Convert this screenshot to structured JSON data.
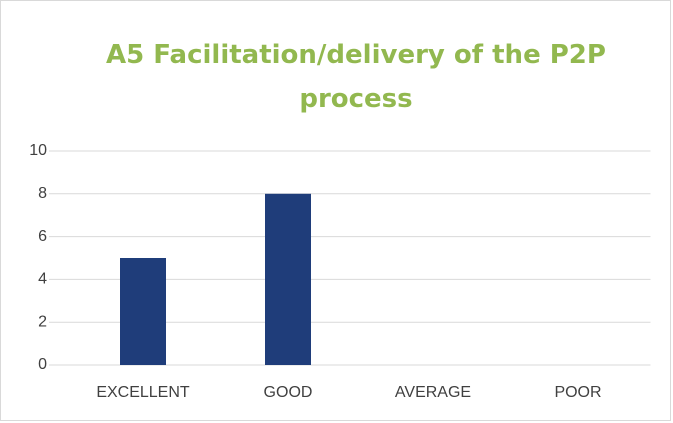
{
  "chart_data": {
    "type": "bar",
    "title": "A5 Facilitation/delivery of the P2P process",
    "categories": [
      "EXCELLENT",
      "GOOD",
      "AVERAGE",
      "POOR"
    ],
    "values": [
      5,
      8,
      0,
      0
    ],
    "color": "#1f3d7a",
    "ylim": [
      0,
      10
    ],
    "yticks": [
      0,
      2,
      4,
      6,
      8,
      10
    ],
    "grid": true
  }
}
